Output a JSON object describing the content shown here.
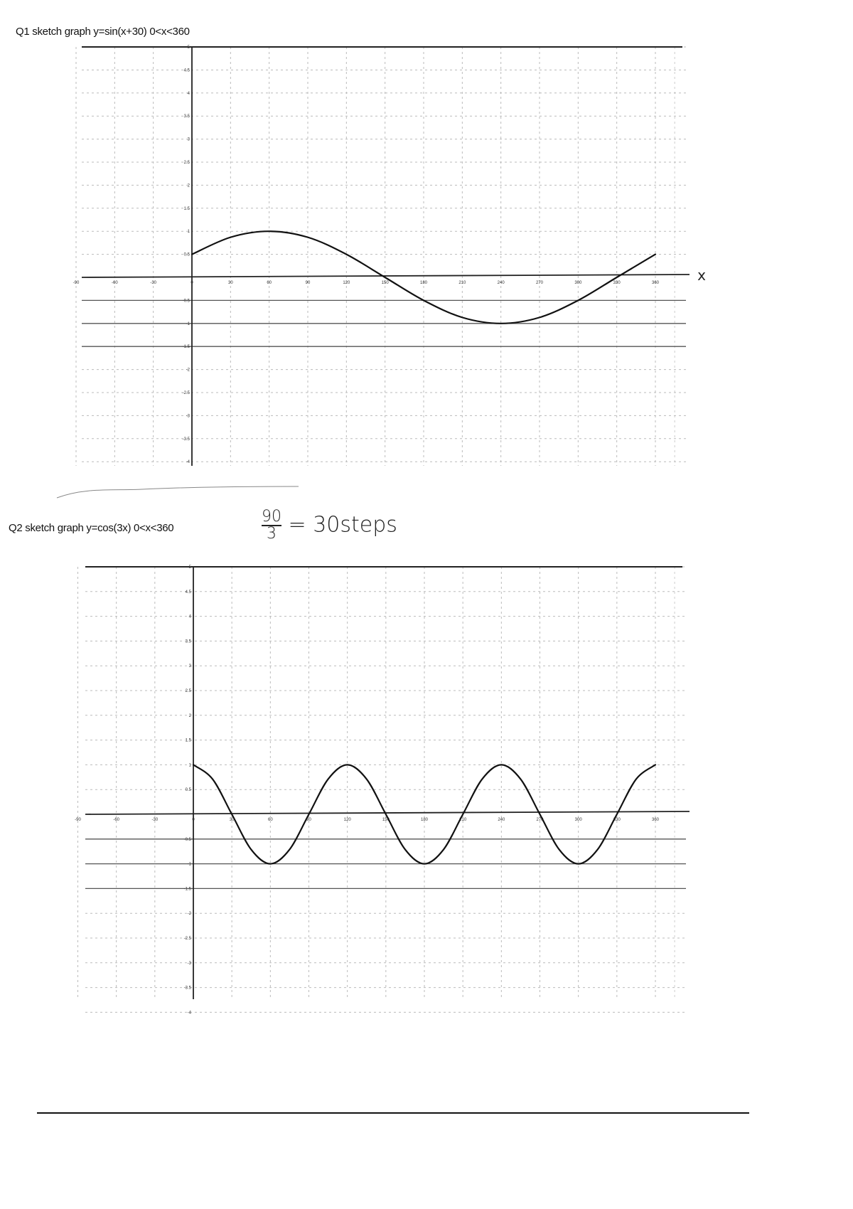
{
  "worksheet": {
    "q1_prompt": "Q1 sketch graph y=sin(x+30) 0<x<360",
    "q2_prompt": "Q2 sketch graph y=cos(3x) 0<x<360",
    "note_numerator": "90",
    "note_denominator": "3",
    "note_rest": "= 30steps",
    "x_axis_letter": "x"
  },
  "chart_data": [
    {
      "type": "line",
      "title": "Q1 sketch graph y=sin(x+30) 0<x<360",
      "xlabel": "x",
      "ylabel": "",
      "xlim": [
        -90,
        360
      ],
      "ylim": [
        -4,
        5
      ],
      "grid": true,
      "x_ticks": [
        -90,
        -60,
        -30,
        0,
        30,
        60,
        90,
        120,
        150,
        180,
        210,
        240,
        270,
        300,
        330,
        360
      ],
      "y_ticks": [
        -4,
        -3.5,
        -3,
        -2.5,
        -2,
        -1.5,
        -1,
        -0.5,
        0.5,
        1,
        1.5,
        2,
        2.5,
        3,
        3.5,
        4,
        4.5,
        5
      ],
      "x": [
        0,
        30,
        60,
        90,
        120,
        150,
        180,
        210,
        240,
        270,
        300,
        330,
        360
      ],
      "y": [
        0.5,
        0.87,
        1,
        0.87,
        0.5,
        0,
        -0.5,
        -0.87,
        -1,
        -0.87,
        -0.5,
        0,
        0.5
      ],
      "color": "#111111"
    },
    {
      "type": "line",
      "title": "Q2 sketch graph y=cos(3x) 0<x<360",
      "xlabel": "",
      "ylabel": "",
      "xlim": [
        -90,
        360
      ],
      "ylim": [
        -4,
        5
      ],
      "grid": true,
      "x_ticks": [
        -90,
        -60,
        -30,
        0,
        30,
        60,
        90,
        120,
        150,
        180,
        210,
        240,
        270,
        300,
        330,
        360
      ],
      "y_ticks": [
        -4,
        -3.5,
        -3,
        -2.5,
        -2,
        -1.5,
        -1,
        -0.5,
        0.5,
        1,
        1.5,
        2,
        2.5,
        3,
        3.5,
        4,
        4.5,
        5
      ],
      "x": [
        0,
        15,
        30,
        45,
        60,
        75,
        90,
        105,
        120,
        135,
        150,
        165,
        180,
        195,
        210,
        225,
        240,
        255,
        270,
        285,
        300,
        315,
        330,
        345,
        360
      ],
      "y": [
        1,
        0.71,
        0,
        -0.71,
        -1,
        -0.71,
        0,
        0.71,
        1,
        0.71,
        0,
        -0.71,
        -1,
        -0.71,
        0,
        0.71,
        1,
        0.71,
        0,
        -0.71,
        -1,
        -0.71,
        0,
        0.71,
        1
      ],
      "color": "#111111"
    }
  ]
}
